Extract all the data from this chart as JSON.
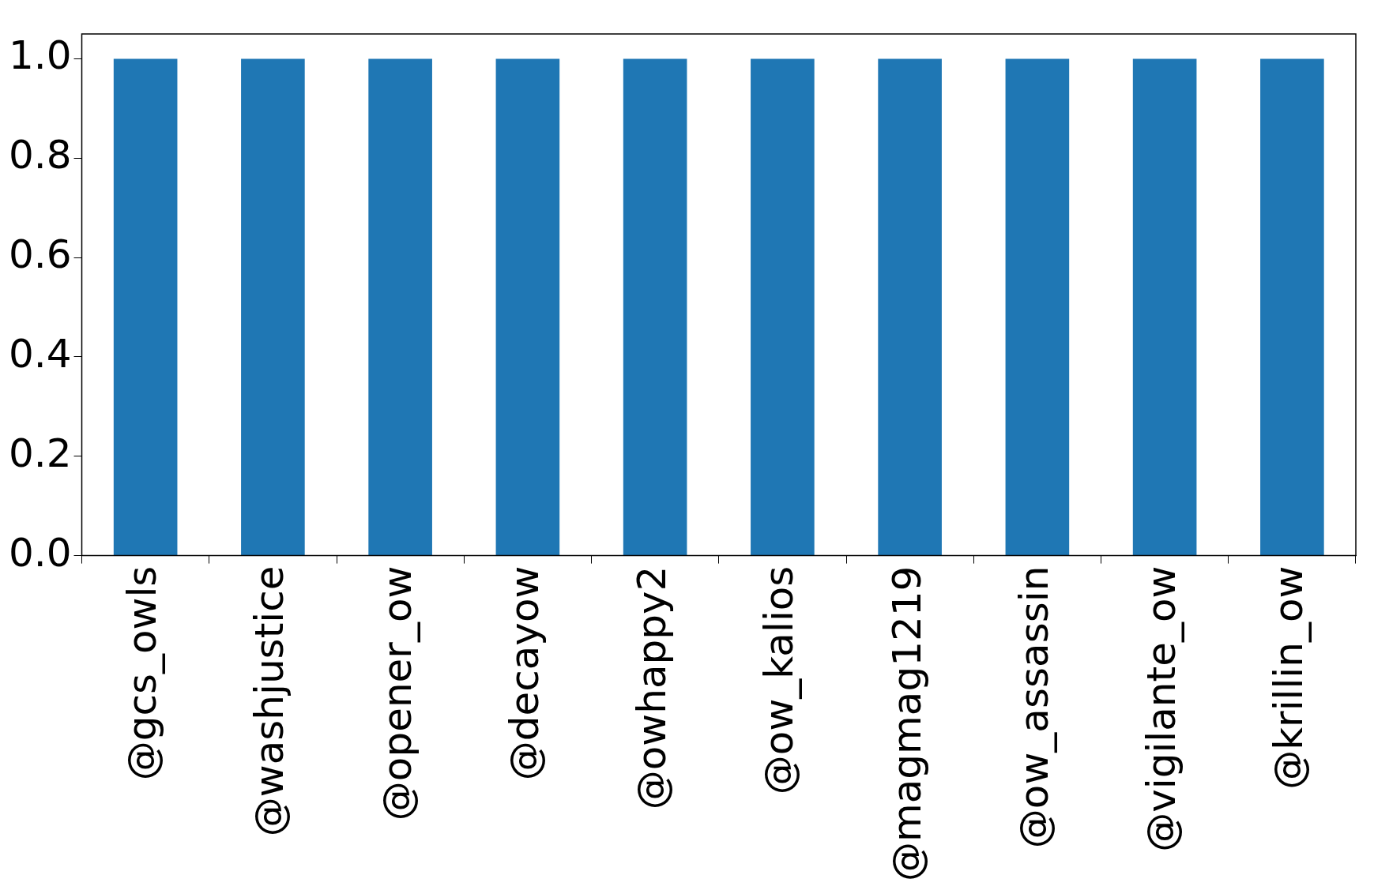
{
  "chart_data": {
    "type": "bar",
    "categories": [
      "@gcs_owls",
      "@washjustice",
      "@opener_ow",
      "@decayow",
      "@owhappy2",
      "@ow_kalios",
      "@magmag1219",
      "@ow_assassin",
      "@vigilante_ow",
      "@krillin_ow"
    ],
    "values": [
      1.0,
      1.0,
      1.0,
      1.0,
      1.0,
      1.0,
      1.0,
      1.0,
      1.0,
      1.0
    ],
    "color": "#1f77b4",
    "ylim": [
      0,
      1.05
    ],
    "yticks": [
      {
        "value": 0,
        "label": "0.0"
      },
      {
        "value": 0.2,
        "label": "0.2"
      },
      {
        "value": 0.4,
        "label": "0.4"
      },
      {
        "value": 0.6,
        "label": "0.6"
      },
      {
        "value": 0.8,
        "label": "0.8"
      },
      {
        "value": 1.0,
        "label": "1.0"
      }
    ],
    "grid": false,
    "legend": false
  }
}
